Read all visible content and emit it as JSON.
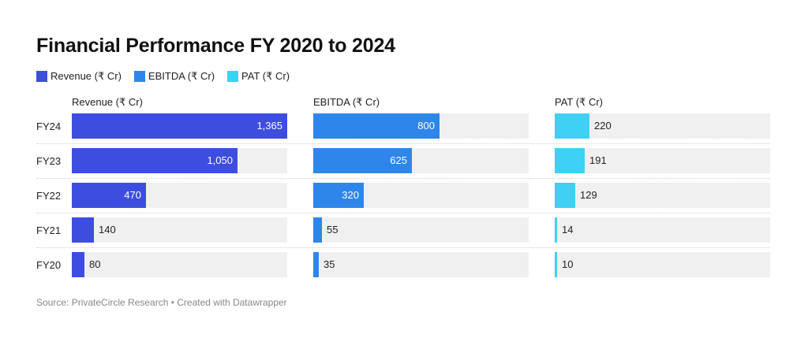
{
  "title": "Financial Performance FY 2020 to 2024",
  "legend": [
    {
      "label": "Revenue (₹ Cr)",
      "color": "#3d4de0"
    },
    {
      "label": "EBITDA (₹ Cr)",
      "color": "#2e86ea"
    },
    {
      "label": "PAT (₹ Cr)",
      "color": "#3fd0f5"
    }
  ],
  "footer": "Source: PrivateCircle Research • Created with Datawrapper",
  "chart_data": {
    "type": "bar",
    "orientation": "horizontal",
    "categories": [
      "FY24",
      "FY23",
      "FY22",
      "FY21",
      "FY20"
    ],
    "series": [
      {
        "name": "Revenue (₹ Cr)",
        "color": "#3d4de0",
        "values": [
          1365,
          1050,
          470,
          140,
          80
        ],
        "labels": [
          "1,365",
          "1,050",
          "470",
          "140",
          "80"
        ],
        "xlim": [
          0,
          1365
        ]
      },
      {
        "name": "EBITDA (₹ Cr)",
        "color": "#2e86ea",
        "values": [
          800,
          625,
          320,
          55,
          35
        ],
        "labels": [
          "800",
          "625",
          "320",
          "55",
          "35"
        ],
        "xlim": [
          0,
          1365
        ]
      },
      {
        "name": "PAT (₹ Cr)",
        "color": "#3fd0f5",
        "values": [
          220,
          191,
          129,
          14,
          10
        ],
        "labels": [
          "220",
          "191",
          "129",
          "14",
          "10"
        ],
        "xlim": [
          0,
          1365
        ]
      }
    ],
    "legend_position": "top-left",
    "grid": false
  }
}
